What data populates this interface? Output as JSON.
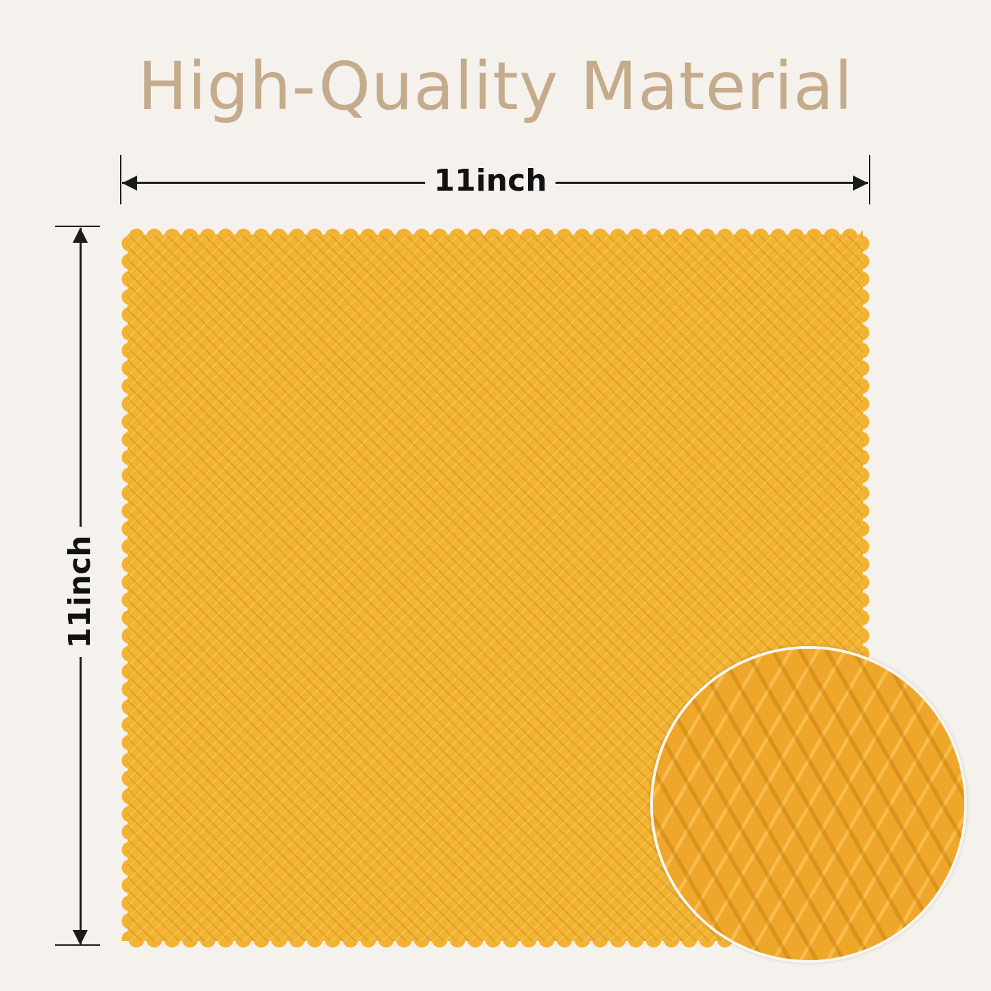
{
  "title": "High-Quality Material",
  "dimensions": {
    "width_label": "11inch",
    "height_label": "11inch"
  },
  "colors": {
    "background": "#f5f1ed",
    "title": "#c4ab8c",
    "cloth": "#f2b232",
    "dimension_lines": "#1a1a1a"
  }
}
